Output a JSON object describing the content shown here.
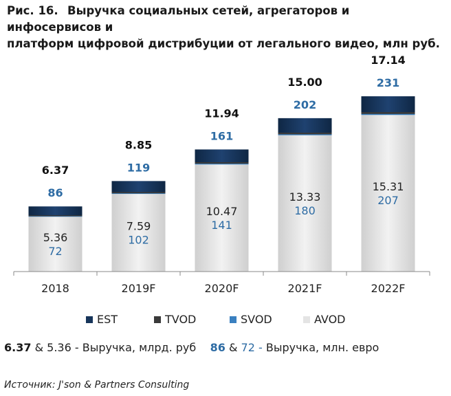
{
  "title": {
    "figure": "Рис. 16.",
    "text_line1": "Выручка социальных сетей, агрегаторов и инфосервисов и",
    "text_line2": "платформ цифровой дистрибуции от легального видео, млн руб."
  },
  "chart_data": {
    "type": "bar",
    "stacked": true,
    "categories": [
      "2018",
      "2019F",
      "2020F",
      "2021F",
      "2022F"
    ],
    "series": [
      {
        "name": "AVOD",
        "values": [
          5.36,
          7.59,
          10.47,
          13.33,
          15.31
        ],
        "color": "#e4e4e4"
      },
      {
        "name": "SVOD",
        "values": [
          0.05,
          0.06,
          0.08,
          0.09,
          0.1
        ],
        "color": "#3a80c0"
      },
      {
        "name": "TVOD",
        "values": [
          0.1,
          0.12,
          0.14,
          0.16,
          0.18
        ],
        "color": "#3a3a3a"
      },
      {
        "name": "EST",
        "values": [
          0.86,
          1.08,
          1.25,
          1.42,
          1.55
        ],
        "color": "#17355a"
      }
    ],
    "totals_rub": [
      "6.37",
      "8.85",
      "11.94",
      "15.00",
      "17.14"
    ],
    "totals_eur": [
      "86",
      "119",
      "161",
      "202",
      "231"
    ],
    "avod_rub": [
      "5.36",
      "7.59",
      "10.47",
      "13.33",
      "15.31"
    ],
    "avod_eur": [
      "72",
      "102",
      "141",
      "180",
      "207"
    ],
    "ylim": [
      0,
      18
    ],
    "grid": false,
    "legend_position": "bottom"
  },
  "legend": [
    {
      "label": "EST",
      "color": "#17355a"
    },
    {
      "label": "TVOD",
      "color": "#3a3a3a"
    },
    {
      "label": "SVOD",
      "color": "#3a80c0"
    },
    {
      "label": "AVOD",
      "color": "#e4e4e4"
    }
  ],
  "note": {
    "rub_total": "6.37",
    "amp1": "&",
    "rub_avod": "5.36",
    "rub_text": "- Выручка, млрд. руб",
    "eur_total": "86",
    "amp2": "&",
    "eur_avod": "72",
    "eur_dash": "-",
    "eur_text": "Выручка, млн. евро"
  },
  "source": "Источник: J'son & Partners Consulting"
}
